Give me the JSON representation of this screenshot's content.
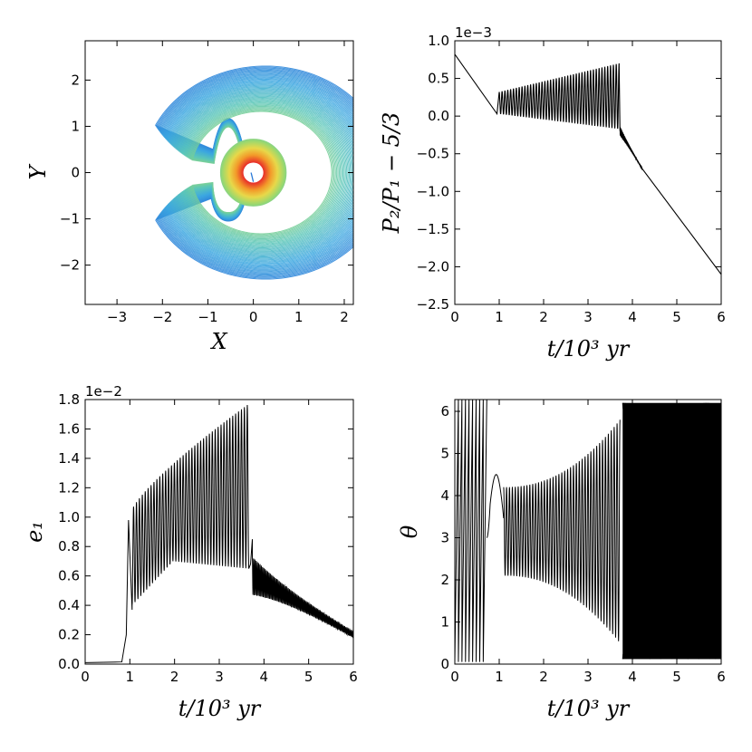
{
  "chart_data": [
    {
      "id": "orbit",
      "type": "line",
      "xlabel": "X",
      "ylabel": "Y",
      "xlim": [
        -3.7,
        2.2
      ],
      "ylim": [
        -2.85,
        2.85
      ],
      "xticks": [
        -3,
        -2,
        -1,
        0,
        1,
        2
      ],
      "yticks": [
        -2,
        -1,
        0,
        1,
        2
      ],
      "xtick_labels": [
        "−3",
        "−2",
        "−1",
        "0",
        "1",
        "2"
      ],
      "ytick_labels": [
        "−2",
        "−1",
        "0",
        "1",
        "2"
      ],
      "colormap": [
        "#2a7ad8",
        "#3aa6e0",
        "#5cc7b6",
        "#9cd86e",
        "#e8d84a",
        "#f39a2a",
        "#e8322a"
      ],
      "description_series": "rainbow-colored nested curves: outer horseshoe loops (green/cyan) shrinking to a red disk near origin"
    },
    {
      "id": "period-ratio",
      "type": "line",
      "xlabel": "t/10³ yr",
      "ylabel": "P₂/P₁ − 5/3",
      "offset_text": "1e−3",
      "xlim": [
        0,
        6
      ],
      "ylim": [
        -2.5,
        1.0
      ],
      "xticks": [
        0,
        1,
        2,
        3,
        4,
        5,
        6
      ],
      "yticks": [
        -2.5,
        -2.0,
        -1.5,
        -1.0,
        -0.5,
        0.0,
        0.5,
        1.0
      ],
      "xtick_labels": [
        "0",
        "1",
        "2",
        "3",
        "4",
        "5",
        "6"
      ],
      "ytick_labels": [
        "−2.5",
        "−2.0",
        "−1.5",
        "−1.0",
        "−0.5",
        "0.0",
        "0.5",
        "1.0"
      ],
      "key_points": [
        [
          0,
          0.82
        ],
        [
          0.95,
          0.03
        ],
        [
          1.05,
          0.32
        ],
        [
          3.7,
          0.7
        ],
        [
          3.72,
          -0.2
        ],
        [
          3.8,
          -0.3
        ],
        [
          4.0,
          -0.45
        ],
        [
          6.0,
          -2.1
        ]
      ]
    },
    {
      "id": "eccentricity",
      "type": "line",
      "xlabel": "t/10³ yr",
      "ylabel": "e₁",
      "offset_text": "1e−2",
      "xlim": [
        0,
        6
      ],
      "ylim": [
        0,
        1.8
      ],
      "xticks": [
        0,
        1,
        2,
        3,
        4,
        5,
        6
      ],
      "yticks": [
        0.0,
        0.2,
        0.4,
        0.6,
        0.8,
        1.0,
        1.2,
        1.4,
        1.6,
        1.8
      ],
      "xtick_labels": [
        "0",
        "1",
        "2",
        "3",
        "4",
        "5",
        "6"
      ],
      "ytick_labels": [
        "0.0",
        "0.2",
        "0.4",
        "0.6",
        "0.8",
        "1.0",
        "1.2",
        "1.4",
        "1.6",
        "1.8"
      ],
      "key_points": [
        [
          0,
          0.01
        ],
        [
          0.85,
          0.02
        ],
        [
          0.97,
          0.98
        ],
        [
          1.05,
          0.37
        ],
        [
          2.0,
          0.7
        ],
        [
          3.65,
          1.77
        ],
        [
          3.7,
          0.7
        ],
        [
          3.75,
          0.85
        ],
        [
          4.0,
          0.6
        ],
        [
          6.0,
          0.2
        ]
      ]
    },
    {
      "id": "resonant-angle",
      "type": "line",
      "xlabel": "t/10³ yr",
      "ylabel": "θ",
      "xlim": [
        0,
        6
      ],
      "ylim": [
        0,
        6.28
      ],
      "xticks": [
        0,
        1,
        2,
        3,
        4,
        5,
        6
      ],
      "yticks": [
        0,
        1,
        2,
        3,
        4,
        5,
        6
      ],
      "xtick_labels": [
        "0",
        "1",
        "2",
        "3",
        "4",
        "5",
        "6"
      ],
      "ytick_labels": [
        "0",
        "1",
        "2",
        "3",
        "4",
        "5",
        "6"
      ],
      "key_points": [
        [
          0.7,
          3.0
        ],
        [
          0.82,
          3.0
        ],
        [
          0.97,
          4.5
        ],
        [
          1.1,
          4.2
        ],
        [
          1.1,
          2.1
        ],
        [
          3.7,
          5.8
        ],
        [
          3.7,
          0.5
        ],
        [
          3.78,
          6.28
        ],
        [
          3.78,
          0
        ]
      ]
    }
  ]
}
